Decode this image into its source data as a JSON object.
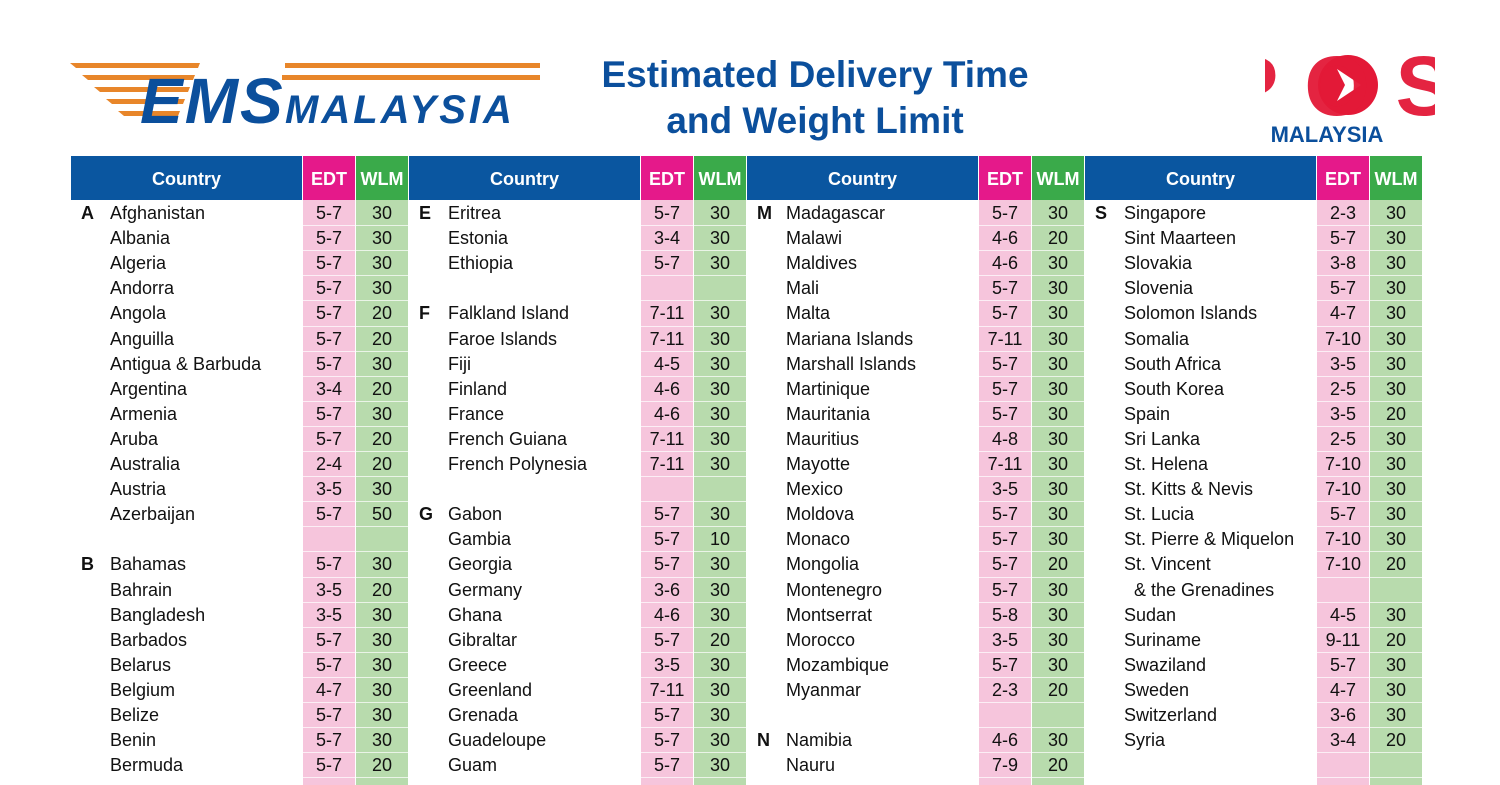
{
  "header": {
    "ems_logo": {
      "mark": "EMS",
      "text": "MALAYSIA"
    },
    "title": [
      "Estimated Delivery Time",
      "and Weight Limit"
    ],
    "pos_logo": {
      "mark": "POS",
      "text": "MALAYSIA"
    }
  },
  "table": {
    "headers": [
      "Country",
      "EDT",
      "WLM"
    ],
    "groups": [
      {
        "rows": [
          {
            "letter": "A",
            "country": "Afghanistan",
            "edt": "5-7",
            "wlm": 30
          },
          {
            "country": "Albania",
            "edt": "5-7",
            "wlm": 30
          },
          {
            "country": "Algeria",
            "edt": "5-7",
            "wlm": 30
          },
          {
            "country": "Andorra",
            "edt": "5-7",
            "wlm": 30
          },
          {
            "country": "Angola",
            "edt": "5-7",
            "wlm": 20
          },
          {
            "country": "Anguilla",
            "edt": "5-7",
            "wlm": 20
          },
          {
            "country": "Antigua & Barbuda",
            "edt": "5-7",
            "wlm": 30
          },
          {
            "country": "Argentina",
            "edt": "3-4",
            "wlm": 20
          },
          {
            "country": "Armenia",
            "edt": "5-7",
            "wlm": 30
          },
          {
            "country": "Aruba",
            "edt": "5-7",
            "wlm": 20
          },
          {
            "country": "Australia",
            "edt": "2-4",
            "wlm": 20
          },
          {
            "country": "Austria",
            "edt": "3-5",
            "wlm": 30
          },
          {
            "country": "Azerbaijan",
            "edt": "5-7",
            "wlm": 50
          },
          {},
          {
            "letter": "B",
            "country": "Bahamas",
            "edt": "5-7",
            "wlm": 30
          },
          {
            "country": "Bahrain",
            "edt": "3-5",
            "wlm": 20
          },
          {
            "country": "Bangladesh",
            "edt": "3-5",
            "wlm": 30
          },
          {
            "country": "Barbados",
            "edt": "5-7",
            "wlm": 30
          },
          {
            "country": "Belarus",
            "edt": "5-7",
            "wlm": 30
          },
          {
            "country": "Belgium",
            "edt": "4-7",
            "wlm": 30
          },
          {
            "country": "Belize",
            "edt": "5-7",
            "wlm": 30
          },
          {
            "country": "Benin",
            "edt": "5-7",
            "wlm": 30
          },
          {
            "country": "Bermuda",
            "edt": "5-7",
            "wlm": 20
          }
        ]
      },
      {
        "rows": [
          {
            "letter": "E",
            "country": "Eritrea",
            "edt": "5-7",
            "wlm": 30
          },
          {
            "country": "Estonia",
            "edt": "3-4",
            "wlm": 30
          },
          {
            "country": "Ethiopia",
            "edt": "5-7",
            "wlm": 30
          },
          {},
          {
            "letter": "F",
            "country": "Falkland Island",
            "edt": "7-11",
            "wlm": 30
          },
          {
            "country": "Faroe Islands",
            "edt": "7-11",
            "wlm": 30
          },
          {
            "country": "Fiji",
            "edt": "4-5",
            "wlm": 30
          },
          {
            "country": "Finland",
            "edt": "4-6",
            "wlm": 30
          },
          {
            "country": "France",
            "edt": "4-6",
            "wlm": 30
          },
          {
            "country": "French Guiana",
            "edt": "7-11",
            "wlm": 30
          },
          {
            "country": "French Polynesia",
            "edt": "7-11",
            "wlm": 30
          },
          {},
          {
            "letter": "G",
            "country": "Gabon",
            "edt": "5-7",
            "wlm": 30
          },
          {
            "country": "Gambia",
            "edt": "5-7",
            "wlm": 10
          },
          {
            "country": "Georgia",
            "edt": "5-7",
            "wlm": 30
          },
          {
            "country": "Germany",
            "edt": "3-6",
            "wlm": 30
          },
          {
            "country": "Ghana",
            "edt": "4-6",
            "wlm": 30
          },
          {
            "country": "Gibraltar",
            "edt": "5-7",
            "wlm": 20
          },
          {
            "country": "Greece",
            "edt": "3-5",
            "wlm": 30
          },
          {
            "country": "Greenland",
            "edt": "7-11",
            "wlm": 30
          },
          {
            "country": "Grenada",
            "edt": "5-7",
            "wlm": 30
          },
          {
            "country": "Guadeloupe",
            "edt": "5-7",
            "wlm": 30
          },
          {
            "country": "Guam",
            "edt": "5-7",
            "wlm": 30
          }
        ]
      },
      {
        "rows": [
          {
            "letter": "M",
            "country": "Madagascar",
            "edt": "5-7",
            "wlm": 30
          },
          {
            "country": "Malawi",
            "edt": "4-6",
            "wlm": 20
          },
          {
            "country": "Maldives",
            "edt": "4-6",
            "wlm": 30
          },
          {
            "country": "Mali",
            "edt": "5-7",
            "wlm": 30
          },
          {
            "country": "Malta",
            "edt": "5-7",
            "wlm": 30
          },
          {
            "country": "Mariana Islands",
            "edt": "7-11",
            "wlm": 30
          },
          {
            "country": "Marshall Islands",
            "edt": "5-7",
            "wlm": 30
          },
          {
            "country": "Martinique",
            "edt": "5-7",
            "wlm": 30
          },
          {
            "country": "Mauritania",
            "edt": "5-7",
            "wlm": 30
          },
          {
            "country": "Mauritius",
            "edt": "4-8",
            "wlm": 30
          },
          {
            "country": "Mayotte",
            "edt": "7-11",
            "wlm": 30
          },
          {
            "country": "Mexico",
            "edt": "3-5",
            "wlm": 30
          },
          {
            "country": "Moldova",
            "edt": "5-7",
            "wlm": 30
          },
          {
            "country": "Monaco",
            "edt": "5-7",
            "wlm": 30
          },
          {
            "country": "Mongolia",
            "edt": "5-7",
            "wlm": 20
          },
          {
            "country": "Montenegro",
            "edt": "5-7",
            "wlm": 30
          },
          {
            "country": "Montserrat",
            "edt": "5-8",
            "wlm": 30
          },
          {
            "country": "Morocco",
            "edt": "3-5",
            "wlm": 30
          },
          {
            "country": "Mozambique",
            "edt": "5-7",
            "wlm": 30
          },
          {
            "country": "Myanmar",
            "edt": "2-3",
            "wlm": 20
          },
          {},
          {
            "letter": "N",
            "country": "Namibia",
            "edt": "4-6",
            "wlm": 30
          },
          {
            "country": "Nauru",
            "edt": "7-9",
            "wlm": 20
          }
        ]
      },
      {
        "rows": [
          {
            "letter": "S",
            "country": "Singapore",
            "edt": "2-3",
            "wlm": 30
          },
          {
            "country": "Sint Maarteen",
            "edt": "5-7",
            "wlm": 30
          },
          {
            "country": "Slovakia",
            "edt": "3-8",
            "wlm": 30
          },
          {
            "country": "Slovenia",
            "edt": "5-7",
            "wlm": 30
          },
          {
            "country": "Solomon Islands",
            "edt": "4-7",
            "wlm": 30
          },
          {
            "country": "Somalia",
            "edt": "7-10",
            "wlm": 30
          },
          {
            "country": "South Africa",
            "edt": "3-5",
            "wlm": 30
          },
          {
            "country": "South Korea",
            "edt": "2-5",
            "wlm": 30
          },
          {
            "country": "Spain",
            "edt": "3-5",
            "wlm": 20
          },
          {
            "country": "Sri Lanka",
            "edt": "2-5",
            "wlm": 30
          },
          {
            "country": "St. Helena",
            "edt": "7-10",
            "wlm": 30
          },
          {
            "country": "St. Kitts & Nevis",
            "edt": "7-10",
            "wlm": 30
          },
          {
            "country": "St. Lucia",
            "edt": "5-7",
            "wlm": 30
          },
          {
            "country": "St. Pierre & Miquelon",
            "edt": "7-10",
            "wlm": 30
          },
          {
            "country": "St. Vincent",
            "edt": "7-10",
            "wlm": 20
          },
          {
            "country": "& the Grenadines"
          },
          {
            "country": "Sudan",
            "edt": "4-5",
            "wlm": 30
          },
          {
            "country": "Suriname",
            "edt": "9-11",
            "wlm": 20
          },
          {
            "country": "Swaziland",
            "edt": "5-7",
            "wlm": 30
          },
          {
            "country": "Sweden",
            "edt": "4-7",
            "wlm": 30
          },
          {
            "country": "Switzerland",
            "edt": "3-6",
            "wlm": 30
          },
          {
            "country": "Syria",
            "edt": "3-4",
            "wlm": 20
          },
          {}
        ]
      }
    ]
  }
}
